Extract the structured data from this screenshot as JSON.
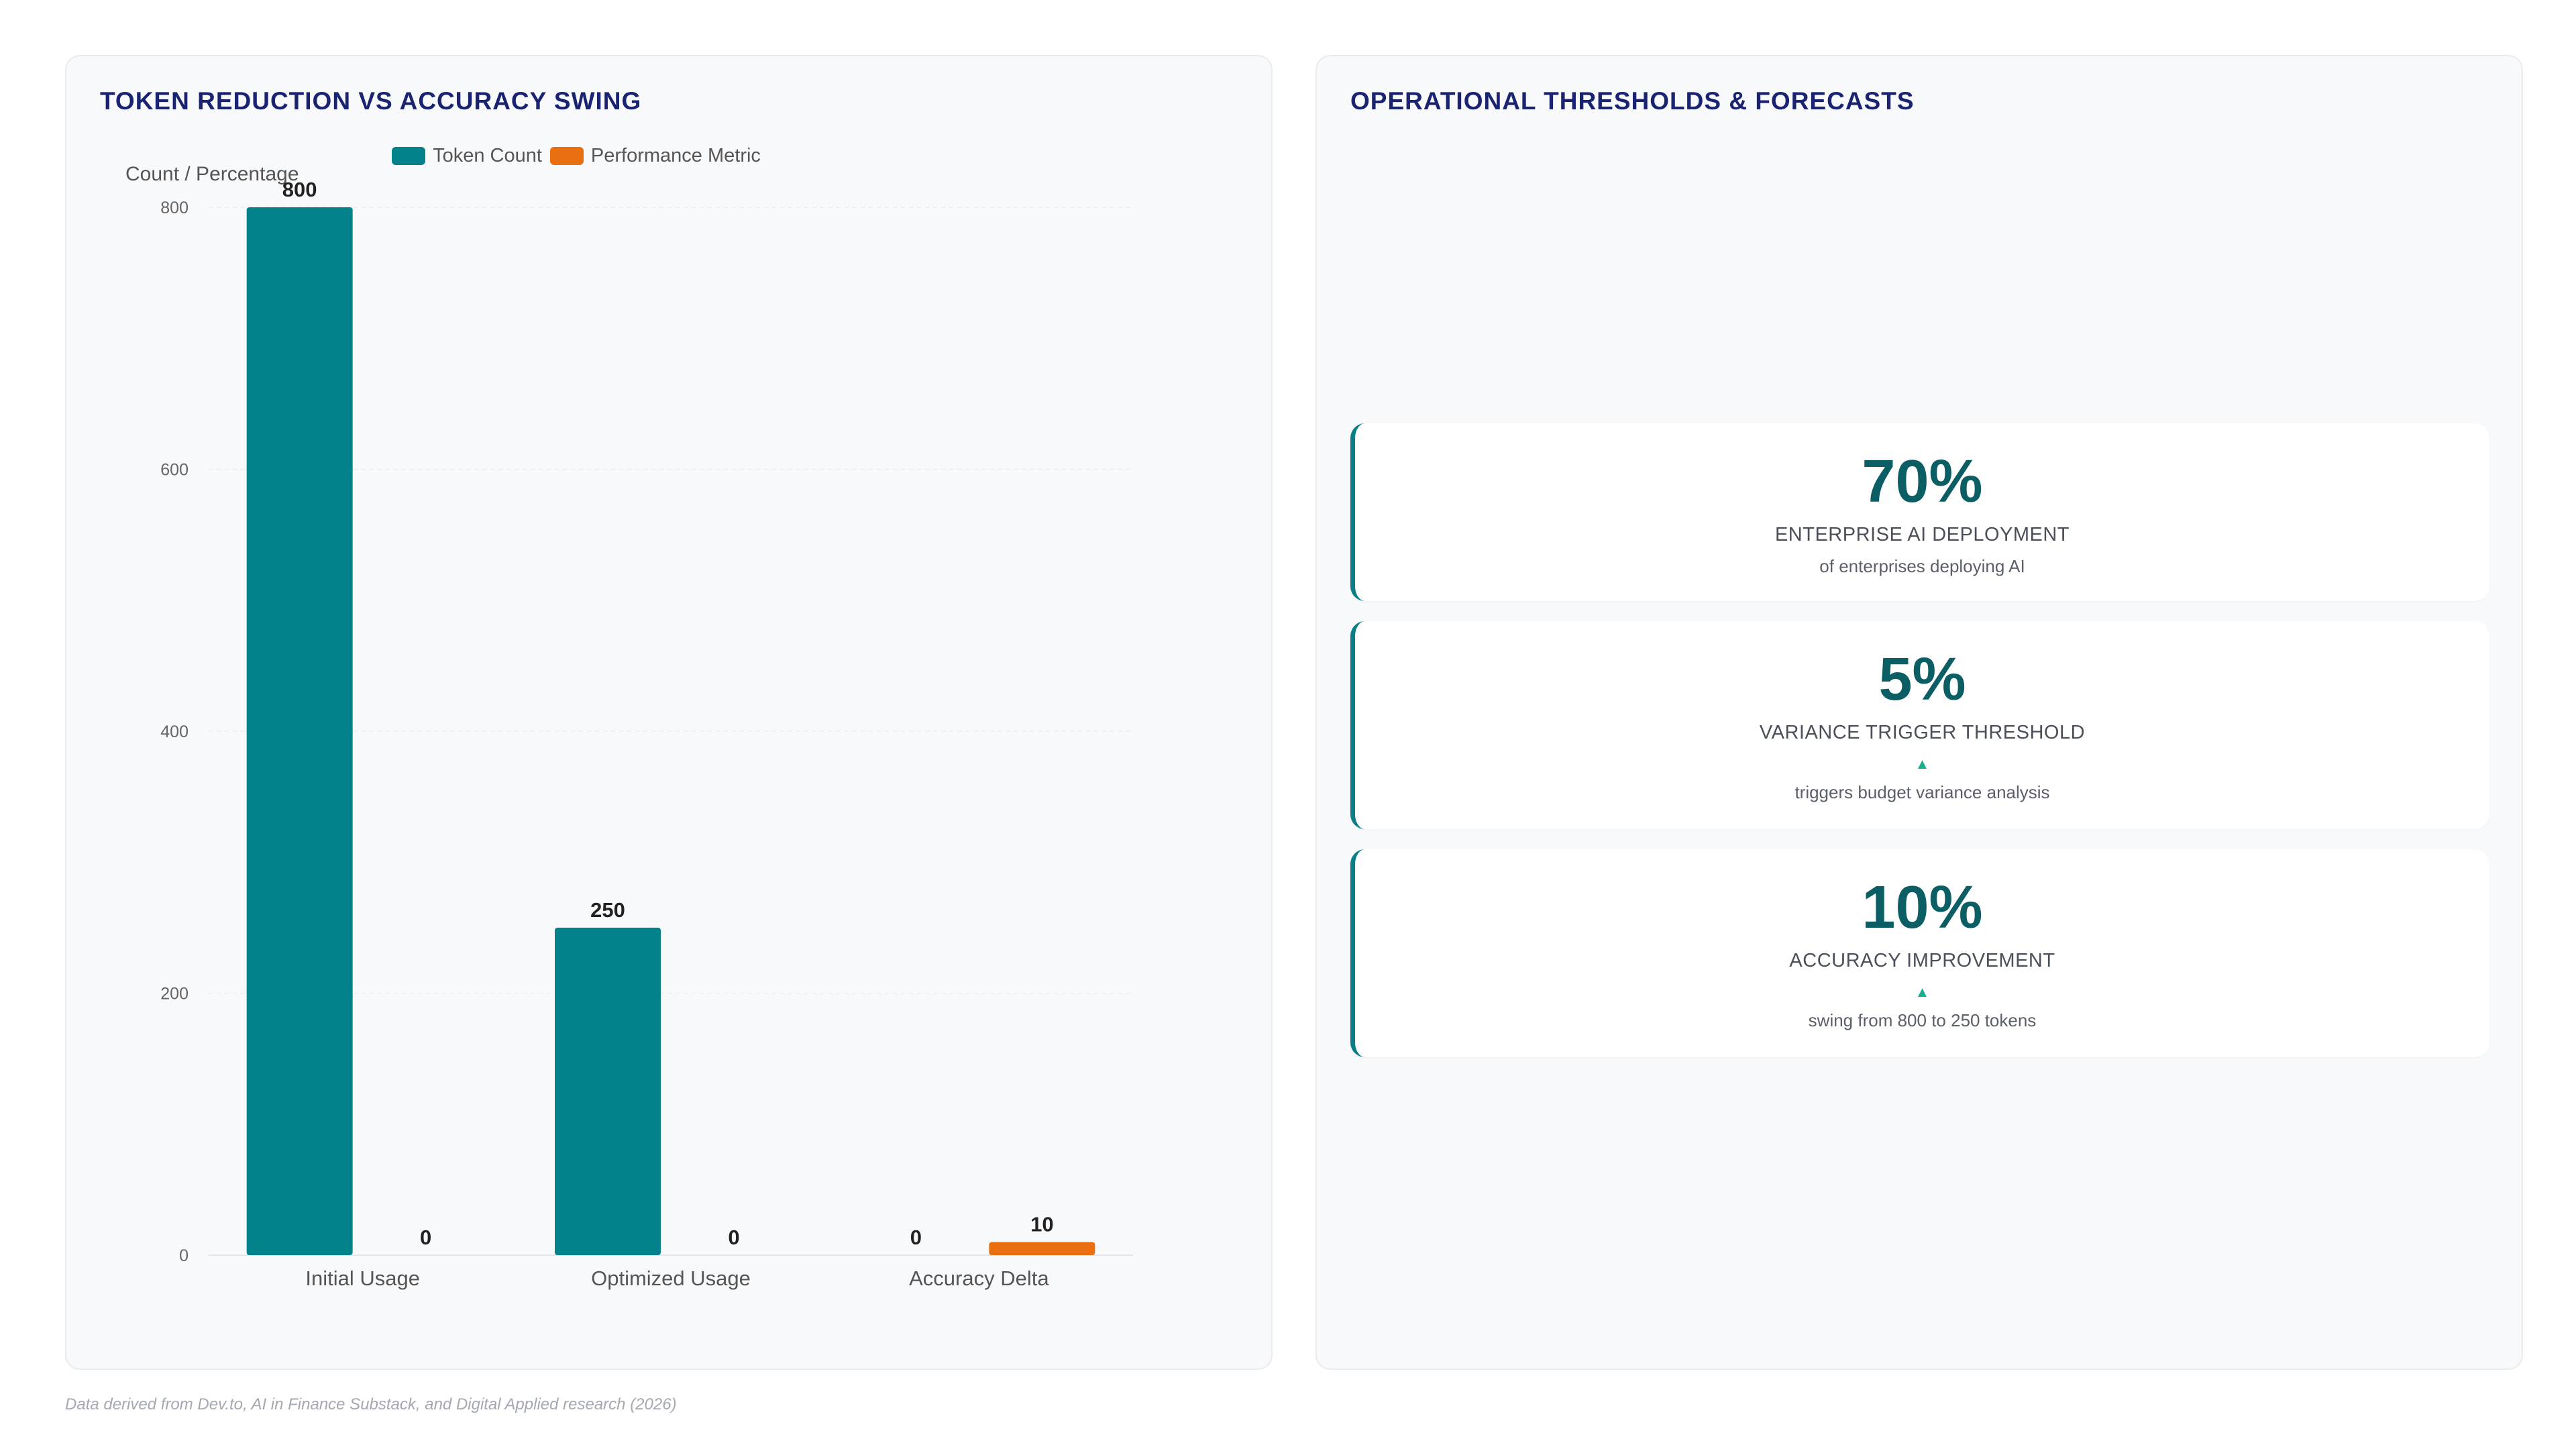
{
  "left_panel": {
    "title": "TOKEN REDUCTION VS ACCURACY SWING"
  },
  "right_panel": {
    "title": "OPERATIONAL THRESHOLDS & FORECASTS"
  },
  "colors": {
    "token": "#03828c",
    "performance": "#e96f10",
    "accent": "#0b5e63",
    "arrow": "#16b08f",
    "title": "#1a2371"
  },
  "chart_data": {
    "type": "bar",
    "title": "",
    "ylabel": "Count / Percentage",
    "xlabel": "",
    "categories": [
      "Initial Usage",
      "Optimized Usage",
      "Accuracy Delta"
    ],
    "series": [
      {
        "name": "Token Count",
        "values": [
          800,
          250,
          0
        ]
      },
      {
        "name": "Performance Metric",
        "values": [
          0,
          0,
          10
        ]
      }
    ],
    "ylim": [
      0,
      800
    ],
    "yticks": [
      0,
      200,
      400,
      600,
      800
    ],
    "grid": true,
    "legend": "top"
  },
  "stats": [
    {
      "value": "70%",
      "label": "ENTERPRISE AI DEPLOYMENT",
      "arrow": "",
      "sub": "of enterprises deploying AI"
    },
    {
      "value": "5%",
      "label": "VARIANCE TRIGGER THRESHOLD",
      "arrow": "▲",
      "sub": "triggers budget variance analysis"
    },
    {
      "value": "10%",
      "label": "ACCURACY IMPROVEMENT",
      "arrow": "▲",
      "sub": "swing from 800 to 250 tokens"
    }
  ],
  "footer": "Data derived from Dev.to, AI in Finance Substack, and Digital Applied research (2026)"
}
